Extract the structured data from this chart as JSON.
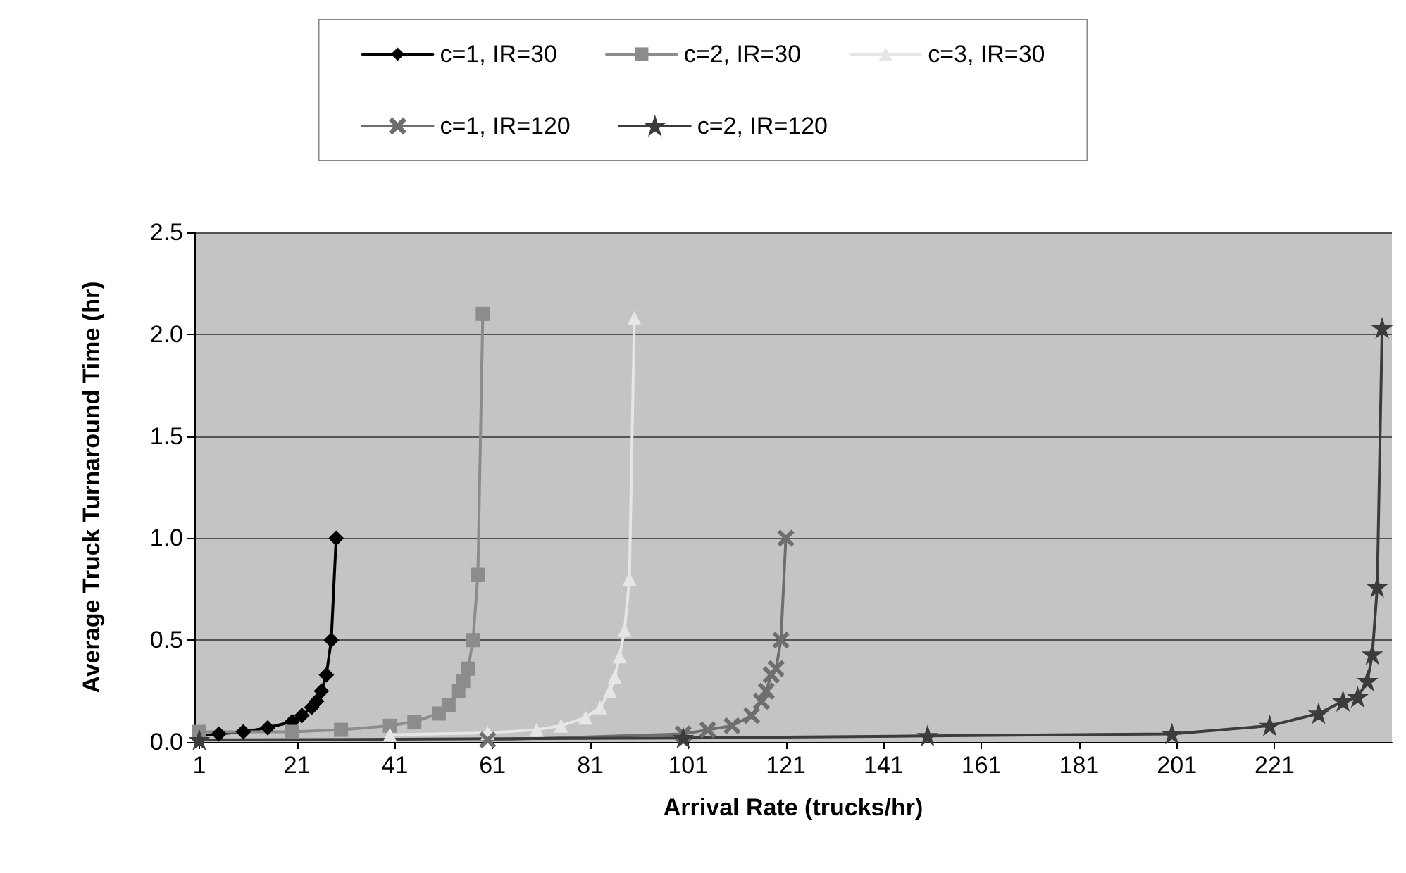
{
  "chart_data": {
    "type": "line",
    "xlabel": "Arrival Rate (trucks/hr)",
    "ylabel": "Average Truck Turnaround Time (hr)",
    "xlim": [
      0,
      245
    ],
    "xticks": [
      1,
      21,
      41,
      61,
      81,
      101,
      121,
      141,
      161,
      181,
      201,
      221
    ],
    "ylim": [
      0,
      2.5
    ],
    "yticks": [
      {
        "value": 0,
        "label": "0.0"
      },
      {
        "value": 0.5,
        "label": "0.5"
      },
      {
        "value": 1,
        "label": "1.0"
      },
      {
        "value": 1.5,
        "label": "1.5"
      },
      {
        "value": 2,
        "label": "2.0"
      },
      {
        "value": 2.5,
        "label": "2.5"
      }
    ],
    "grid": "y",
    "legend": "top",
    "series": [
      {
        "name": "c=1, IR=30",
        "color": "#000000",
        "marker": "diamond",
        "x": [
          1,
          5,
          10,
          15,
          20,
          22,
          24,
          25,
          26,
          27,
          28,
          29
        ],
        "values": [
          0.03,
          0.04,
          0.05,
          0.07,
          0.1,
          0.13,
          0.17,
          0.2,
          0.25,
          0.33,
          0.5,
          1.0
        ]
      },
      {
        "name": "c=2, IR=30",
        "color": "#8c8c8c",
        "marker": "square",
        "x": [
          1,
          20,
          30,
          40,
          45,
          50,
          52,
          54,
          55,
          56,
          57,
          58,
          59
        ],
        "values": [
          0.05,
          0.05,
          0.06,
          0.08,
          0.1,
          0.14,
          0.18,
          0.25,
          0.3,
          0.36,
          0.5,
          0.82,
          2.1
        ]
      },
      {
        "name": "c=3, IR=30",
        "color": "#e6e6e6",
        "marker": "triangle",
        "x": [
          40,
          60,
          70,
          75,
          80,
          83,
          85,
          86,
          87,
          88,
          89,
          90
        ],
        "values": [
          0.035,
          0.045,
          0.06,
          0.08,
          0.12,
          0.17,
          0.25,
          0.32,
          0.42,
          0.55,
          0.8,
          2.08
        ]
      },
      {
        "name": "c=1, IR=120",
        "color": "#6e6e6e",
        "marker": "cross",
        "x": [
          60,
          100,
          105,
          110,
          114,
          116,
          117,
          118,
          119,
          120,
          121
        ],
        "values": [
          0.01,
          0.04,
          0.06,
          0.08,
          0.13,
          0.2,
          0.25,
          0.33,
          0.36,
          0.5,
          1.0
        ]
      },
      {
        "name": "c=2, IR=120",
        "color": "#3c3c3c",
        "marker": "star",
        "x": [
          1,
          100,
          150,
          200,
          220,
          230,
          235,
          238,
          240,
          241,
          242,
          243
        ],
        "values": [
          0.01,
          0.02,
          0.03,
          0.04,
          0.08,
          0.14,
          0.2,
          0.22,
          0.3,
          0.43,
          0.76,
          2.03
        ]
      }
    ]
  }
}
